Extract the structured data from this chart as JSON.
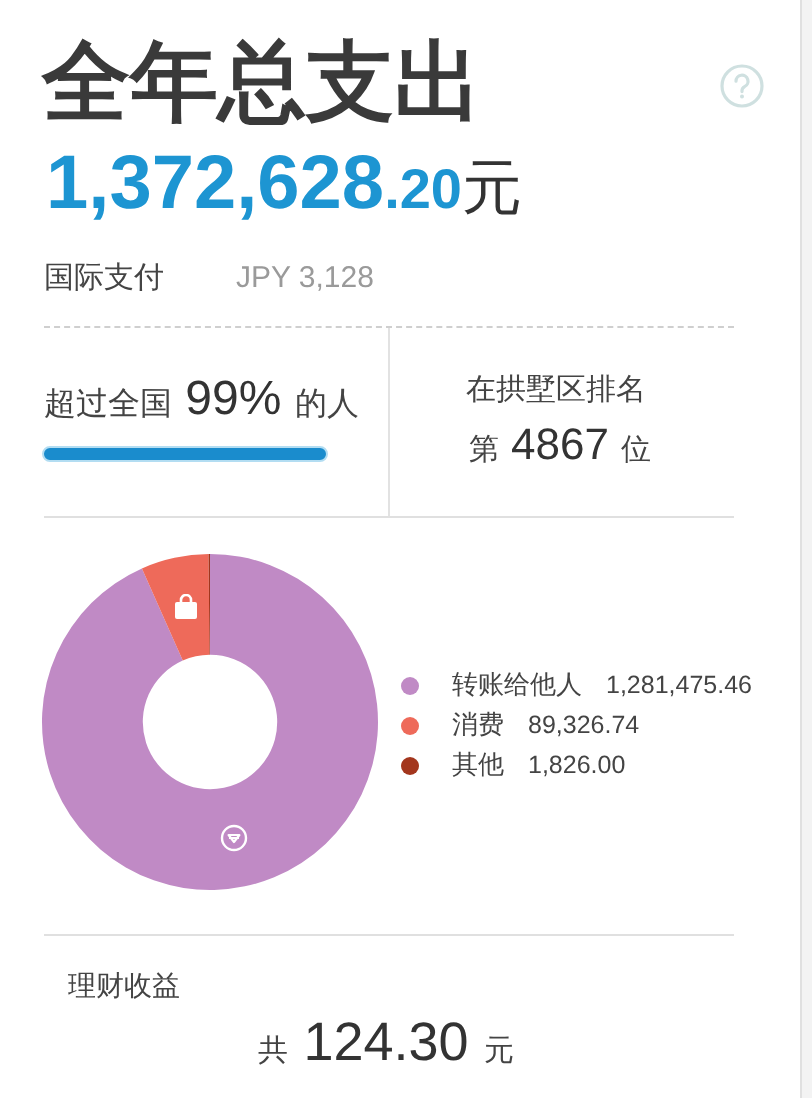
{
  "chart_data": {
    "type": "donut",
    "title": "全年总支出",
    "subtitle": "1,372,628.20元",
    "categories": [
      "转账给他人",
      "消费",
      "其他"
    ],
    "values": [
      1281475.46,
      89326.74,
      1826.0
    ],
    "value_labels": [
      "1,281,475.46",
      "89,326.74",
      "1,826.00"
    ],
    "colors": [
      "#c08ac5",
      "#ee6a5a",
      "#a3361d"
    ],
    "legend": "right",
    "annotations": [
      "国际支付",
      "JPY 3,128",
      "超过全国 99% 的人",
      "在拱墅区排名",
      "第 4867 位",
      "理财收益",
      "共 124.30 元"
    ]
  }
}
